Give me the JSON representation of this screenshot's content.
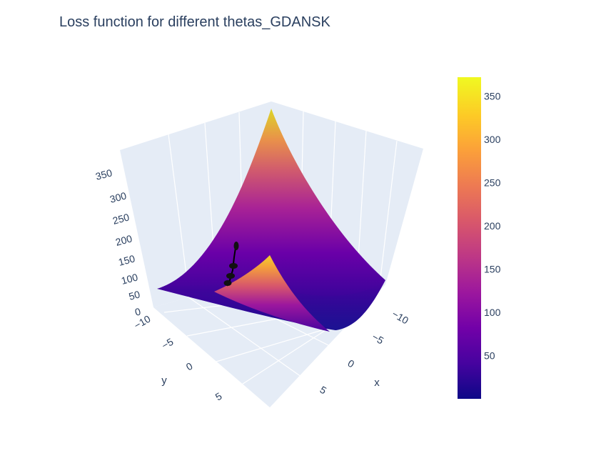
{
  "chart_data": {
    "type": "surface",
    "title": "Loss function for different thetas_GDANSK",
    "xlabel": "x",
    "ylabel": "y",
    "zlabel": "",
    "x_ticks": [
      "−10",
      "−5",
      "0",
      "5"
    ],
    "y_ticks": [
      "−10",
      "−5",
      "0",
      "5"
    ],
    "z_ticks": [
      "0",
      "50",
      "100",
      "150",
      "200",
      "250",
      "300",
      "350"
    ],
    "x_range": [
      -10,
      10
    ],
    "y_range": [
      -10,
      10
    ],
    "z_range": [
      0,
      375
    ],
    "grid": true,
    "colorscale": "plasma",
    "colorbar": {
      "ticks": [
        "50",
        "100",
        "150",
        "200",
        "250",
        "300",
        "350"
      ],
      "range": [
        0,
        372
      ]
    },
    "surface": {
      "function": "loss(x, y)",
      "max_z": 372,
      "min_z": 0
    },
    "descent_path": {
      "color": "#000000"
    }
  }
}
